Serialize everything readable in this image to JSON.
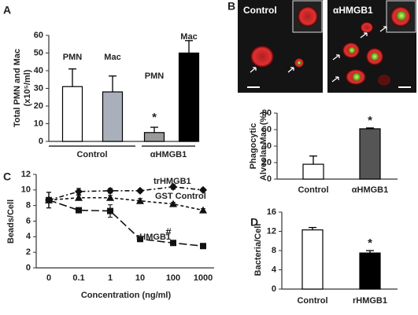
{
  "micrographs": {
    "panel": "B",
    "labels": [
      "Control",
      "αHMGB1"
    ]
  },
  "chart_data": [
    {
      "type": "bar",
      "panel": "A",
      "ylabel_lines": [
        "Total PMN and Mac",
        "(x10⁵/ml)"
      ],
      "categories": [
        "PMN",
        "Mac",
        "PMN",
        "Mac"
      ],
      "groups": [
        "Control",
        "αHMGB1"
      ],
      "values": [
        31,
        28,
        5,
        50
      ],
      "errors": [
        10,
        9,
        3,
        7
      ],
      "markers": [
        null,
        null,
        "*",
        null
      ],
      "colors": [
        "#ffffff",
        "#a9b0bc",
        "#9a9a9a",
        "#000000"
      ],
      "ylim": [
        0,
        60
      ],
      "yticks": [
        0,
        10,
        20,
        30,
        40,
        50,
        60
      ]
    },
    {
      "type": "bar",
      "panel": "B",
      "ylabel_lines": [
        "Phagocytic",
        "Alveolar Mac (%)"
      ],
      "categories": [
        "Control",
        "αHMGB1"
      ],
      "values": [
        18,
        61
      ],
      "errors": [
        10,
        1
      ],
      "markers": [
        null,
        "*"
      ],
      "colors": [
        "#ffffff",
        "#555555"
      ],
      "ylim": [
        0,
        80
      ],
      "yticks": [
        0,
        20,
        40,
        60,
        80
      ]
    },
    {
      "type": "line",
      "panel": "C",
      "ylabel_lines": [
        "Beads/Cell"
      ],
      "xlabel": "Concentration (ng/ml)",
      "categories": [
        "0",
        "0.1",
        "1",
        "10",
        "100",
        "1000"
      ],
      "series": [
        {
          "name": "trHMGB1",
          "color": "#111111",
          "marker": "diamond",
          "dash": "6 3 2 3",
          "values": [
            8.7,
            9.8,
            9.9,
            9.9,
            10.4,
            10.0
          ],
          "errors": [
            1.0,
            0.4,
            0.3,
            0.2,
            0.3,
            0.2
          ]
        },
        {
          "name": "GST Control",
          "color": "#111111",
          "marker": "triangle",
          "dash": "4 3",
          "values": [
            8.7,
            9.0,
            9.0,
            8.6,
            8.2,
            7.4
          ],
          "errors": [
            1.0,
            0.3,
            0.3,
            0.3,
            0.2,
            0.2
          ]
        },
        {
          "name": "rHMGB1",
          "color": "#111111",
          "marker": "square",
          "dash": "10 4",
          "values": [
            8.7,
            7.4,
            7.3,
            3.7,
            3.2,
            2.8
          ],
          "errors": [
            1.0,
            0.3,
            0.8,
            0.2,
            0.2,
            0.2
          ],
          "markers": [
            null,
            null,
            null,
            null,
            "#",
            null
          ]
        }
      ],
      "ylim": [
        0,
        12
      ],
      "yticks": [
        0,
        2,
        4,
        6,
        8,
        10,
        12
      ]
    },
    {
      "type": "bar",
      "panel": "D",
      "ylabel_lines": [
        "Bacteria/Cell"
      ],
      "categories": [
        "Control",
        "rHMGB1"
      ],
      "values": [
        12.3,
        7.5
      ],
      "errors": [
        0.5,
        0.5
      ],
      "markers": [
        null,
        "*"
      ],
      "colors": [
        "#ffffff",
        "#000000"
      ],
      "ylim": [
        0,
        16
      ],
      "yticks": [
        0,
        4,
        8,
        12,
        16
      ]
    }
  ]
}
